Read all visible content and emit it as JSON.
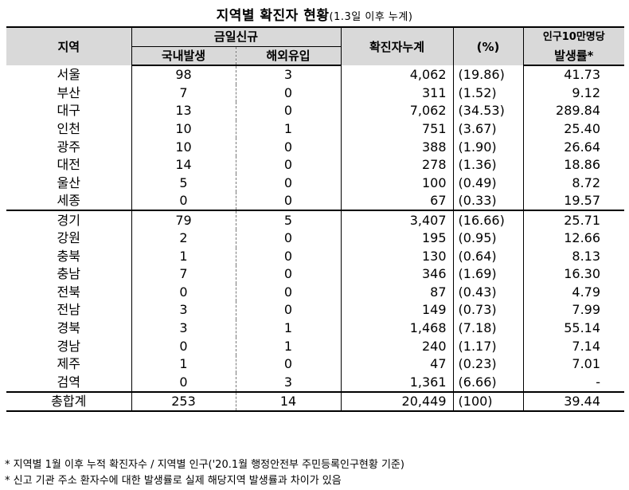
{
  "title": {
    "main": "지역별 확진자 현황",
    "sub": "(1.3일 이후 누계)"
  },
  "headers": {
    "region": "지역",
    "today_new": "금일신규",
    "domestic": "국내발생",
    "overseas": "해외유입",
    "cumulative": "확진자누계",
    "percent": "(%)",
    "rate_line1": "인구10만명당",
    "rate_line2": "발생률*"
  },
  "rows": [
    {
      "region": "서울",
      "domestic": "98",
      "overseas": "3",
      "cumulative": "4,062",
      "percent": "(19.86)",
      "rate": "41.73"
    },
    {
      "region": "부산",
      "domestic": "7",
      "overseas": "0",
      "cumulative": "311",
      "percent": "(1.52)",
      "rate": "9.12"
    },
    {
      "region": "대구",
      "domestic": "13",
      "overseas": "0",
      "cumulative": "7,062",
      "percent": "(34.53)",
      "rate": "289.84"
    },
    {
      "region": "인천",
      "domestic": "10",
      "overseas": "1",
      "cumulative": "751",
      "percent": "(3.67)",
      "rate": "25.40"
    },
    {
      "region": "광주",
      "domestic": "10",
      "overseas": "0",
      "cumulative": "388",
      "percent": "(1.90)",
      "rate": "26.64"
    },
    {
      "region": "대전",
      "domestic": "14",
      "overseas": "0",
      "cumulative": "278",
      "percent": "(1.36)",
      "rate": "18.86"
    },
    {
      "region": "울산",
      "domestic": "5",
      "overseas": "0",
      "cumulative": "100",
      "percent": "(0.49)",
      "rate": "8.72"
    },
    {
      "region": "세종",
      "domestic": "0",
      "overseas": "0",
      "cumulative": "67",
      "percent": "(0.33)",
      "rate": "19.57"
    },
    {
      "region": "경기",
      "domestic": "79",
      "overseas": "5",
      "cumulative": "3,407",
      "percent": "(16.66)",
      "rate": "25.71"
    },
    {
      "region": "강원",
      "domestic": "2",
      "overseas": "0",
      "cumulative": "195",
      "percent": "(0.95)",
      "rate": "12.66"
    },
    {
      "region": "충북",
      "domestic": "1",
      "overseas": "0",
      "cumulative": "130",
      "percent": "(0.64)",
      "rate": "8.13"
    },
    {
      "region": "충남",
      "domestic": "7",
      "overseas": "0",
      "cumulative": "346",
      "percent": "(1.69)",
      "rate": "16.30"
    },
    {
      "region": "전북",
      "domestic": "0",
      "overseas": "0",
      "cumulative": "87",
      "percent": "(0.43)",
      "rate": "4.79"
    },
    {
      "region": "전남",
      "domestic": "3",
      "overseas": "0",
      "cumulative": "149",
      "percent": "(0.73)",
      "rate": "7.99"
    },
    {
      "region": "경북",
      "domestic": "3",
      "overseas": "1",
      "cumulative": "1,468",
      "percent": "(7.18)",
      "rate": "55.14"
    },
    {
      "region": "경남",
      "domestic": "0",
      "overseas": "1",
      "cumulative": "240",
      "percent": "(1.17)",
      "rate": "7.14"
    },
    {
      "region": "제주",
      "domestic": "1",
      "overseas": "0",
      "cumulative": "47",
      "percent": "(0.23)",
      "rate": "7.01"
    },
    {
      "region": "검역",
      "domestic": "0",
      "overseas": "3",
      "cumulative": "1,361",
      "percent": "(6.66)",
      "rate": "-"
    }
  ],
  "total": {
    "region": "총합계",
    "domestic": "253",
    "overseas": "14",
    "cumulative": "20,449",
    "percent": "(100)",
    "rate": "39.44"
  },
  "notes": [
    "* 지역별 1월 이후 누적 확진자수 / 지역별 인구('20.1월 행정안전부 주민등록인구현황 기준)",
    "* 신고 기관 주소 환자수에 대한 발생률로 실제 해당지역 발생률과 차이가 있음"
  ]
}
